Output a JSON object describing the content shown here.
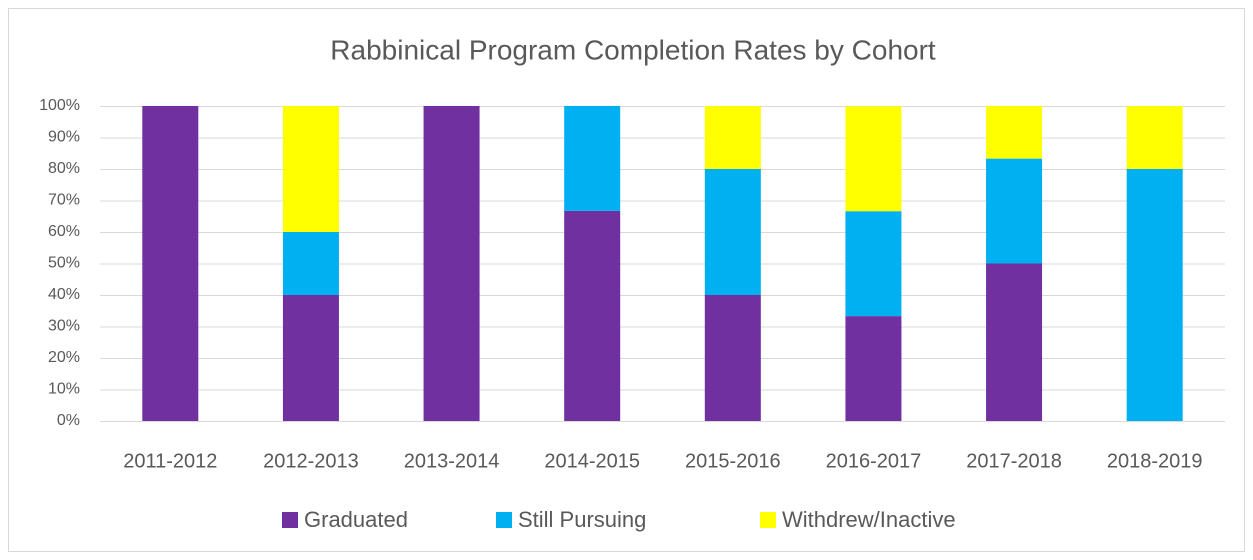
{
  "chart_data": {
    "type": "bar",
    "stacked": true,
    "title": "Rabbinical Program Completion Rates by Cohort",
    "categories": [
      "2011-2012",
      "2012-2013",
      "2013-2014",
      "2014-2015",
      "2015-2016",
      "2016-2017",
      "2017-2018",
      "2018-2019"
    ],
    "series": [
      {
        "name": "Graduated",
        "color": "#7030a0",
        "values": [
          100,
          40,
          100,
          66.7,
          40,
          33.3,
          50,
          0
        ]
      },
      {
        "name": "Still Pursuing",
        "color": "#00b0f0",
        "values": [
          0,
          20,
          0,
          33.3,
          40,
          33.3,
          33.3,
          80
        ]
      },
      {
        "name": "Withdrew/Inactive",
        "color": "#ffff00",
        "values": [
          0,
          40,
          0,
          0,
          20,
          33.3,
          16.7,
          20
        ]
      }
    ],
    "ylim": [
      0,
      100
    ],
    "yticks": [
      {
        "value": 0,
        "label": "0%"
      },
      {
        "value": 10,
        "label": "10%"
      },
      {
        "value": 20,
        "label": "20%"
      },
      {
        "value": 30,
        "label": "30%"
      },
      {
        "value": 40,
        "label": "40%"
      },
      {
        "value": 50,
        "label": "50%"
      },
      {
        "value": 60,
        "label": "60%"
      },
      {
        "value": 70,
        "label": "70%"
      },
      {
        "value": 80,
        "label": "80%"
      },
      {
        "value": 90,
        "label": "90%"
      },
      {
        "value": 100,
        "label": "100%"
      }
    ],
    "grid": true,
    "legend": "bottom"
  }
}
